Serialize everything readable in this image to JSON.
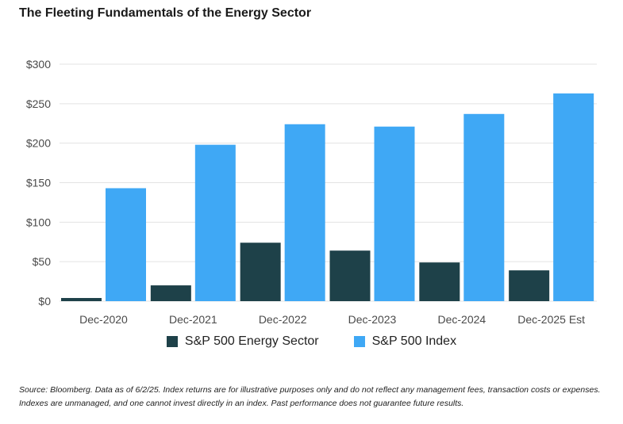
{
  "title": "The Fleeting Fundamentals of the Energy Sector",
  "source_note": "Source: Bloomberg. Data as of 6/2/25. Index returns are for illustrative purposes only and do not reflect any management fees, transaction costs or expenses. Indexes are unmanaged, and one cannot invest directly in an index. Past performance does not guarantee future results.",
  "colors": {
    "energy": "#1e4149",
    "index": "#3fa8f5",
    "grid": "#e3e3e3"
  },
  "chart_data": {
    "type": "bar",
    "categories": [
      "Dec-2020",
      "Dec-2021",
      "Dec-2022",
      "Dec-2023",
      "Dec-2024",
      "Dec-2025 Est"
    ],
    "series": [
      {
        "name": "S&P 500 Energy Sector",
        "values": [
          4,
          20,
          74,
          64,
          49,
          39
        ]
      },
      {
        "name": "S&P 500 Index",
        "values": [
          143,
          198,
          224,
          221,
          237,
          263
        ]
      }
    ],
    "yticks": [
      "$0",
      "$50",
      "$100",
      "$150",
      "$200",
      "$250",
      "$300"
    ],
    "ylim": [
      0,
      300
    ],
    "grid": true,
    "legend_position": "bottom"
  }
}
